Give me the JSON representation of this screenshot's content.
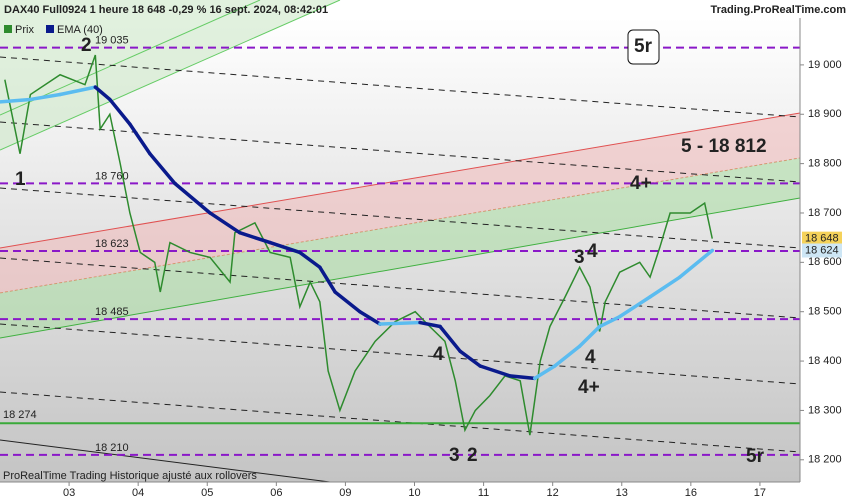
{
  "chart_data": {
    "type": "line",
    "title": "DAX40 Full0924 1 heure 18 648 -0,29 % 16 sept. 2024, 08:42:01",
    "source": "Trading.ProRealTime.com",
    "footer": "ProRealTime Trading  Historique ajusté aux rollovers",
    "xlim": [
      -1,
      10.58
    ],
    "xticks": [
      {
        "value": 0,
        "label": "03"
      },
      {
        "value": 1,
        "label": "04"
      },
      {
        "value": 2,
        "label": "05"
      },
      {
        "value": 3,
        "label": "06"
      },
      {
        "value": 4,
        "label": "09"
      },
      {
        "value": 5,
        "label": "10"
      },
      {
        "value": 6,
        "label": "11"
      },
      {
        "value": 7,
        "label": "12"
      },
      {
        "value": 8,
        "label": "13"
      },
      {
        "value": 9,
        "label": "16"
      },
      {
        "value": 10,
        "label": "17"
      }
    ],
    "ylim": [
      18155,
      19095
    ],
    "yticks": [
      {
        "value": 18200,
        "label": "18 200"
      },
      {
        "value": 18300,
        "label": "18 300"
      },
      {
        "value": 18400,
        "label": "18 400"
      },
      {
        "value": 18500,
        "label": "18 500"
      },
      {
        "value": 18600,
        "label": "18 600"
      },
      {
        "value": 18700,
        "label": "18 700"
      },
      {
        "value": 18800,
        "label": "18 800"
      },
      {
        "value": 18900,
        "label": "18 900"
      },
      {
        "value": 19000,
        "label": "19 000"
      }
    ],
    "series": [
      {
        "name": "Prix",
        "color": "#2e8b2e",
        "x": [
          -0.93,
          -0.71,
          -0.56,
          -0.13,
          0.23,
          0.38,
          0.45,
          0.59,
          0.74,
          0.88,
          1.03,
          1.24,
          1.32,
          1.46,
          1.75,
          2.04,
          2.33,
          2.4,
          2.69,
          2.91,
          3.2,
          3.34,
          3.49,
          3.63,
          3.75,
          3.92,
          4.14,
          4.43,
          4.72,
          5.01,
          5.22,
          5.44,
          5.59,
          5.73,
          5.88,
          6.09,
          6.31,
          6.53,
          6.67,
          6.82,
          6.96,
          7.18,
          7.39,
          7.54,
          7.68,
          7.76,
          7.97,
          8.26,
          8.41,
          8.55,
          8.7,
          8.99,
          9.2,
          9.31
        ],
        "values": [
          18970,
          18820,
          18940,
          18980,
          18960,
          19020,
          18870,
          18900,
          18800,
          18700,
          18620,
          18600,
          18540,
          18640,
          18620,
          18610,
          18560,
          18660,
          18680,
          18620,
          18610,
          18510,
          18560,
          18520,
          18380,
          18300,
          18380,
          18440,
          18480,
          18500,
          18470,
          18440,
          18360,
          18260,
          18300,
          18330,
          18370,
          18360,
          18250,
          18400,
          18470,
          18530,
          18590,
          18550,
          18460,
          18520,
          18580,
          18600,
          18570,
          18630,
          18700,
          18700,
          18720,
          18648
        ]
      },
      {
        "name": "EMA (40)",
        "color": "#0a1a8c",
        "rising_color": "#5bbcf0",
        "x": [
          -1.0,
          -0.56,
          -0.13,
          0.38,
          0.59,
          0.88,
          1.17,
          1.53,
          2.04,
          2.47,
          2.91,
          3.34,
          3.63,
          3.85,
          4.21,
          4.5,
          5.08,
          5.37,
          5.66,
          5.95,
          6.38,
          6.74,
          7.03,
          7.39,
          7.68,
          7.97,
          8.41,
          8.84,
          9.31
        ],
        "values": [
          18925,
          18930,
          18940,
          18955,
          18930,
          18880,
          18820,
          18760,
          18700,
          18660,
          18640,
          18620,
          18590,
          18540,
          18500,
          18475,
          18478,
          18470,
          18420,
          18390,
          18370,
          18365,
          18390,
          18430,
          18470,
          18490,
          18530,
          18570,
          18624
        ]
      }
    ],
    "levels": [
      {
        "value": 19035,
        "label": "19 035"
      },
      {
        "value": 18760,
        "label": "18 760"
      },
      {
        "value": 18623,
        "label": "18 623"
      },
      {
        "value": 18485,
        "label": "18 485"
      },
      {
        "value": 18210,
        "label": "18 210"
      }
    ],
    "level_color": "#8a18c8",
    "support": {
      "value": 18274,
      "label": "18 274",
      "color": "#3aaa3a"
    },
    "last_price_label": "18 648",
    "ema_label": "18 624",
    "annotations": [
      "1",
      "2",
      "3",
      "2",
      "4",
      "3",
      "4",
      "4",
      "4+",
      "4+",
      "5 - 18 812",
      "5r",
      "5r"
    ]
  }
}
